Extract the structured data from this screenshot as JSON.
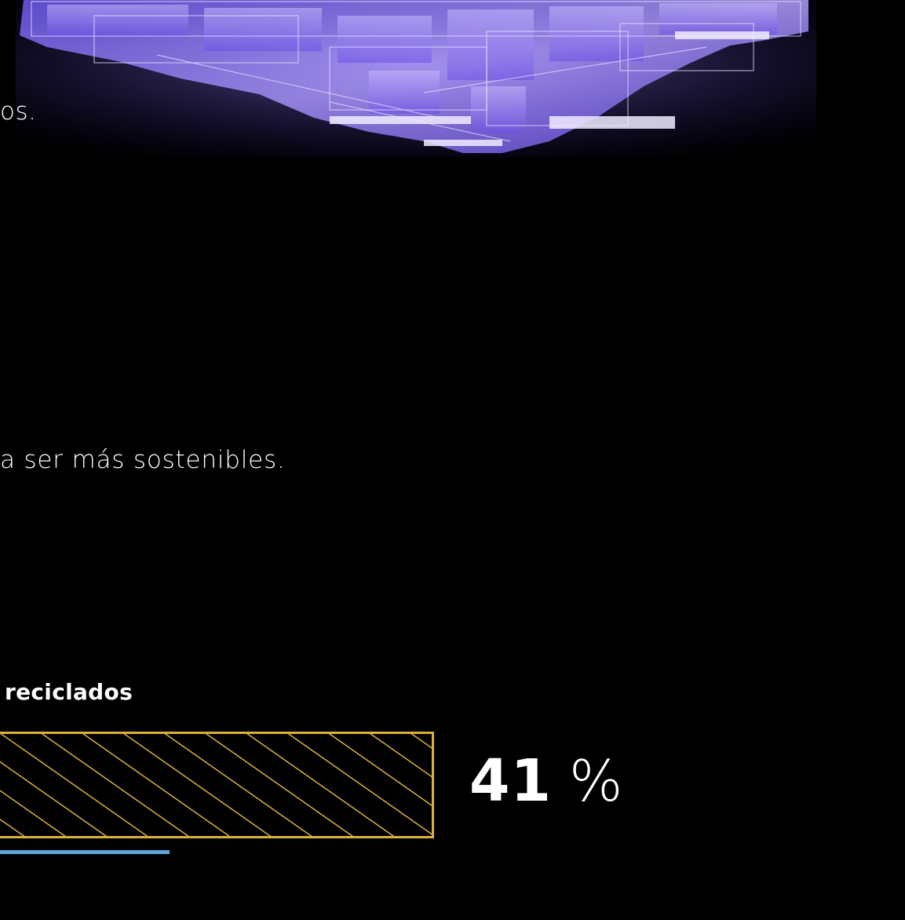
{
  "fragments": {
    "line_a": "os.",
    "line_b": "a ser más sostenibles."
  },
  "stat": {
    "label": "reciclados",
    "value_number": "41",
    "value_unit": "%",
    "percent": 41
  },
  "colors": {
    "background": "#000000",
    "text": "#ffffff",
    "bar_accent": "#d9b23a",
    "underline_accent": "#5aa6d6",
    "art_glow": "#8b6cff"
  },
  "icons": {
    "hero": "glass-building-illustration"
  }
}
